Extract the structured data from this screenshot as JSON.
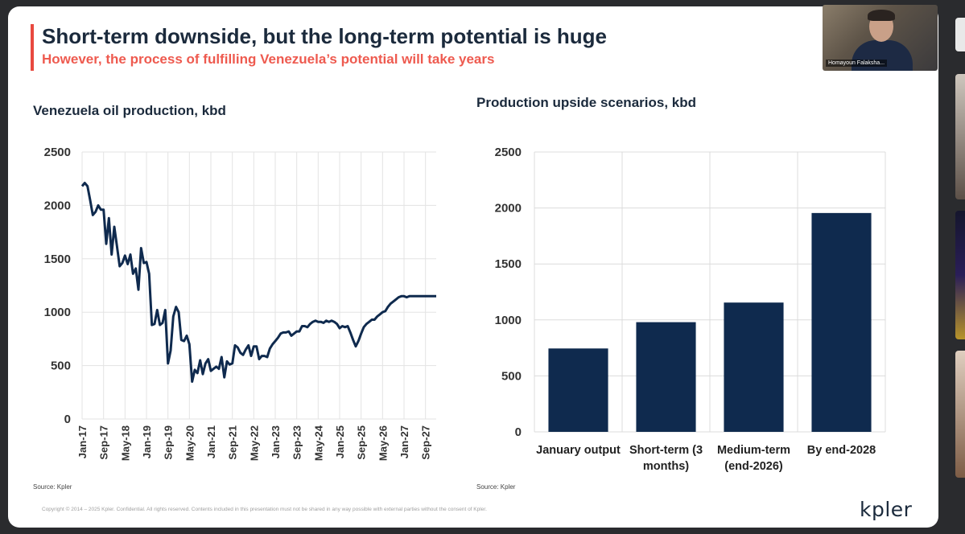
{
  "slide": {
    "title": "Short-term downside, but the long-term potential is huge",
    "subtitle": "However, the process of fulfilling Venezuela’s potential will take years",
    "copyright": "Copyright © 2014 – 2025 Kpler. Confidential. All rights reserved. Contents included in this presentation must not be shared in any way possible with external parties without the consent of Kpler.",
    "logo": "kpler",
    "accent_color": "#e8493f",
    "navy_color": "#0f2a4e"
  },
  "webcam": {
    "participant_name": "Homayoun Falaksha..."
  },
  "chart_data": [
    {
      "type": "line",
      "title": "Venezuela oil production, kbd",
      "source": "Source: Kpler",
      "xlabel": "",
      "ylabel": "",
      "ylim": [
        0,
        2500
      ],
      "yticks": [
        "0",
        "500",
        "1000",
        "1500",
        "2000",
        "2500"
      ],
      "xticks": [
        "Jan-17",
        "Sep-17",
        "May-18",
        "Jan-19",
        "Sep-19",
        "May-20",
        "Jan-21",
        "Sep-21",
        "May-22",
        "Jan-23",
        "Sep-23",
        "May-24",
        "Jan-25",
        "Sep-25",
        "May-26",
        "Jan-27",
        "Sep-27"
      ],
      "x_months": [
        0,
        1,
        2,
        3,
        4,
        5,
        6,
        7,
        8,
        9,
        10,
        11,
        12,
        13,
        14,
        15,
        16,
        17,
        18,
        19,
        20,
        21,
        22,
        23,
        24,
        25,
        26,
        27,
        28,
        29,
        30,
        31,
        32,
        33,
        34,
        35,
        36,
        37,
        38,
        39,
        40,
        41,
        42,
        43,
        44,
        45,
        46,
        47,
        48,
        49,
        50,
        51,
        52,
        53,
        54,
        55,
        56,
        57,
        58,
        59,
        60,
        61,
        62,
        63,
        64,
        65,
        66,
        67,
        68,
        69,
        70,
        71,
        72,
        73,
        74,
        75,
        76,
        77,
        78,
        79,
        80,
        81,
        82,
        83,
        84,
        85,
        86,
        87,
        88,
        89,
        90,
        91,
        92,
        93,
        94,
        95,
        96,
        97,
        98,
        99,
        100,
        101,
        102,
        103,
        104,
        105,
        106,
        107,
        108,
        109,
        110,
        111,
        112,
        113,
        114,
        115,
        116,
        117,
        118,
        119,
        120,
        121,
        122,
        123,
        124,
        125,
        126,
        127,
        128,
        129,
        130,
        131,
        132
      ],
      "values": [
        2180,
        2210,
        2180,
        2050,
        1910,
        1940,
        2000,
        1960,
        1960,
        1640,
        1880,
        1540,
        1800,
        1620,
        1430,
        1460,
        1530,
        1450,
        1540,
        1360,
        1410,
        1210,
        1600,
        1460,
        1470,
        1360,
        880,
        890,
        1020,
        880,
        900,
        1020,
        520,
        640,
        960,
        1050,
        1000,
        740,
        730,
        780,
        700,
        350,
        460,
        430,
        550,
        420,
        520,
        560,
        450,
        470,
        490,
        470,
        580,
        390,
        540,
        510,
        520,
        690,
        670,
        620,
        600,
        650,
        690,
        590,
        680,
        680,
        560,
        590,
        590,
        580,
        660,
        700,
        730,
        760,
        800,
        810,
        810,
        820,
        780,
        800,
        820,
        820,
        870,
        870,
        860,
        890,
        910,
        920,
        910,
        910,
        900,
        920,
        910,
        920,
        910,
        890,
        850,
        870,
        860,
        870,
        810,
        740,
        680,
        730,
        800,
        860,
        890,
        910,
        930,
        930,
        960,
        980,
        1000,
        1010,
        1050,
        1080,
        1100,
        1120,
        1140,
        1150,
        1150,
        1140,
        1150,
        1150,
        1150,
        1150,
        1150,
        1150,
        1150,
        1150,
        1150,
        1150,
        1150
      ]
    },
    {
      "type": "bar",
      "title": "Production upside scenarios, kbd",
      "source": "Source: Kpler",
      "categories": [
        [
          "January output"
        ],
        [
          "Short-term (3",
          "months)"
        ],
        [
          "Medium-term",
          "(end-2026)"
        ],
        [
          "By end-2028"
        ]
      ],
      "values": [
        745,
        980,
        1155,
        1955
      ],
      "ylim": [
        0,
        2500
      ],
      "yticks": [
        "0",
        "500",
        "1000",
        "1500",
        "2000",
        "2500"
      ],
      "color": "#0f2a4e"
    }
  ]
}
